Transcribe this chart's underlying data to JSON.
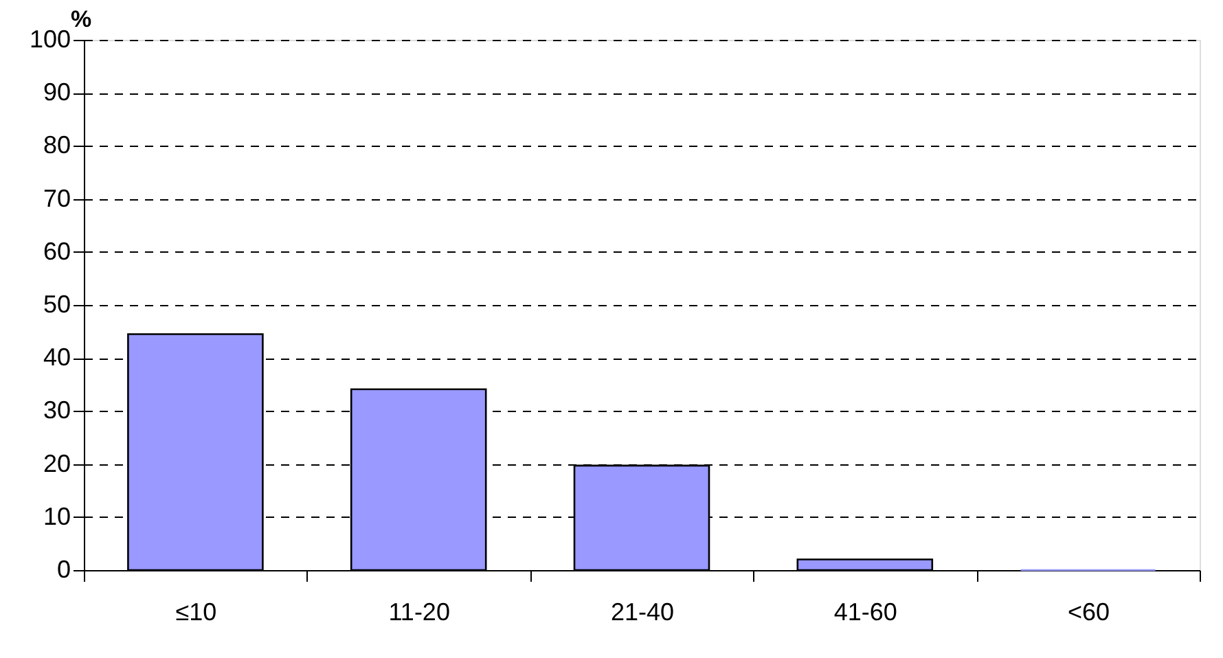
{
  "chart_data": {
    "type": "bar",
    "ylabel": "%",
    "categories": [
      "≤10",
      "11-20",
      "21-40",
      "41-60",
      "<60"
    ],
    "series": [
      {
        "color": "#9999ff",
        "values": [
          44.5,
          34.1,
          19.7,
          2.0,
          0
        ]
      }
    ],
    "ylim": [
      0,
      100
    ],
    "yticks": [
      0,
      10,
      20,
      30,
      40,
      50,
      60,
      70,
      80,
      90,
      100
    ],
    "grid": "y"
  }
}
